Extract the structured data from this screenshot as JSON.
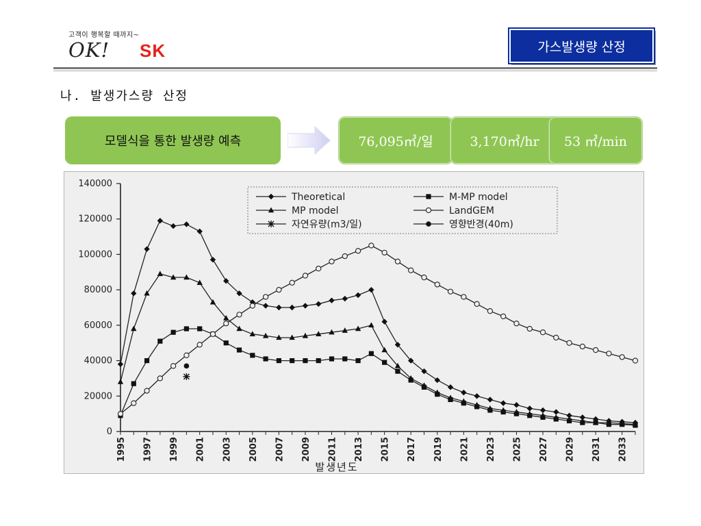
{
  "header": {
    "tagline": "고객이 행복할 때까지~",
    "logo_ok": "OK!",
    "logo_sk": "SK",
    "title": "가스발생량 산정"
  },
  "section": {
    "heading": "나. 발생가스량 산정"
  },
  "prediction": {
    "label": "모델식을 통한 발생량 예측",
    "daily": "76,095㎥/일",
    "hourly": "3,170㎥/hr",
    "minute": "53 ㎥/min"
  },
  "chart_data": {
    "type": "line",
    "xlabel": "발생년도",
    "ylabel": "",
    "xlim": [
      1995,
      2034
    ],
    "ylim": [
      0,
      140000
    ],
    "yticks": [
      0,
      20000,
      40000,
      60000,
      80000,
      100000,
      120000,
      140000
    ],
    "xticks": [
      1995,
      1997,
      1999,
      2001,
      2003,
      2005,
      2007,
      2009,
      2011,
      2013,
      2015,
      2017,
      2019,
      2021,
      2023,
      2025,
      2027,
      2029,
      2031,
      2033
    ],
    "grid": false,
    "legend_placement": "top-center",
    "series": [
      {
        "name": "Theoretical",
        "marker": "diamond",
        "x": [
          1995,
          1996,
          1997,
          1998,
          1999,
          2000,
          2001,
          2002,
          2003,
          2004,
          2005,
          2006,
          2007,
          2008,
          2009,
          2010,
          2011,
          2012,
          2013,
          2014,
          2015,
          2016,
          2017,
          2018,
          2019,
          2020,
          2021,
          2022,
          2023,
          2024,
          2025,
          2026,
          2027,
          2028,
          2029,
          2030,
          2031,
          2032,
          2033,
          2034
        ],
        "values": [
          38000,
          78000,
          103000,
          119000,
          116000,
          117000,
          113000,
          97000,
          85000,
          78000,
          73000,
          71000,
          70000,
          70000,
          71000,
          72000,
          74000,
          75000,
          77000,
          80000,
          62000,
          49000,
          40000,
          34000,
          29000,
          25000,
          22000,
          20000,
          18000,
          16000,
          15000,
          13000,
          12000,
          11000,
          9000,
          8000,
          7000,
          6000,
          5500,
          5000
        ]
      },
      {
        "name": "M-MP model",
        "marker": "square",
        "x": [
          1995,
          1996,
          1997,
          1998,
          1999,
          2000,
          2001,
          2002,
          2003,
          2004,
          2005,
          2006,
          2007,
          2008,
          2009,
          2010,
          2011,
          2012,
          2013,
          2014,
          2015,
          2016,
          2017,
          2018,
          2019,
          2020,
          2021,
          2022,
          2023,
          2024,
          2025,
          2026,
          2027,
          2028,
          2029,
          2030,
          2031,
          2032,
          2033,
          2034
        ],
        "values": [
          9000,
          27000,
          40000,
          51000,
          56000,
          58000,
          58000,
          55000,
          50000,
          46000,
          43000,
          41000,
          40000,
          40000,
          40000,
          40000,
          41000,
          41000,
          40000,
          44000,
          39000,
          34000,
          29000,
          25000,
          21000,
          18000,
          16000,
          14000,
          12000,
          11000,
          10000,
          9000,
          8000,
          7000,
          6000,
          5000,
          5000,
          4000,
          4000,
          3500
        ]
      },
      {
        "name": "MP model",
        "marker": "triangle",
        "x": [
          1995,
          1996,
          1997,
          1998,
          1999,
          2000,
          2001,
          2002,
          2003,
          2004,
          2005,
          2006,
          2007,
          2008,
          2009,
          2010,
          2011,
          2012,
          2013,
          2014,
          2015,
          2016,
          2017,
          2018,
          2019,
          2020,
          2021,
          2022,
          2023,
          2024,
          2025,
          2026,
          2027,
          2028,
          2029,
          2030,
          2031,
          2032,
          2033,
          2034
        ],
        "values": [
          28000,
          58000,
          78000,
          89000,
          87000,
          87000,
          84000,
          73000,
          64000,
          58000,
          55000,
          54000,
          53000,
          53000,
          54000,
          55000,
          56000,
          57000,
          58000,
          60000,
          46000,
          37000,
          30000,
          26000,
          22000,
          19000,
          17000,
          15000,
          13000,
          12000,
          11000,
          10000,
          9000,
          8000,
          7000,
          6000,
          5000,
          5000,
          4500,
          4000
        ]
      },
      {
        "name": "LandGEM",
        "marker": "circle-open",
        "x": [
          1995,
          1996,
          1997,
          1998,
          1999,
          2000,
          2001,
          2002,
          2003,
          2004,
          2005,
          2006,
          2007,
          2008,
          2009,
          2010,
          2011,
          2012,
          2013,
          2014,
          2015,
          2016,
          2017,
          2018,
          2019,
          2020,
          2021,
          2022,
          2023,
          2024,
          2025,
          2026,
          2027,
          2028,
          2029,
          2030,
          2031,
          2032,
          2033,
          2034
        ],
        "values": [
          10000,
          16000,
          23000,
          30000,
          37000,
          43000,
          49000,
          55000,
          61000,
          66000,
          71000,
          76000,
          80000,
          84000,
          88000,
          92000,
          96000,
          99000,
          102000,
          105000,
          101000,
          96000,
          91000,
          87000,
          83000,
          79000,
          76000,
          72000,
          68000,
          65000,
          61000,
          58000,
          56000,
          53000,
          50000,
          48000,
          46000,
          44000,
          42000,
          40000
        ]
      },
      {
        "name": "자연유량(m3/일)",
        "marker": "star",
        "x": [
          2000
        ],
        "values": [
          31000
        ]
      },
      {
        "name": "영향반경(40m)",
        "marker": "dot",
        "x": [
          2000
        ],
        "values": [
          37000
        ]
      }
    ]
  }
}
